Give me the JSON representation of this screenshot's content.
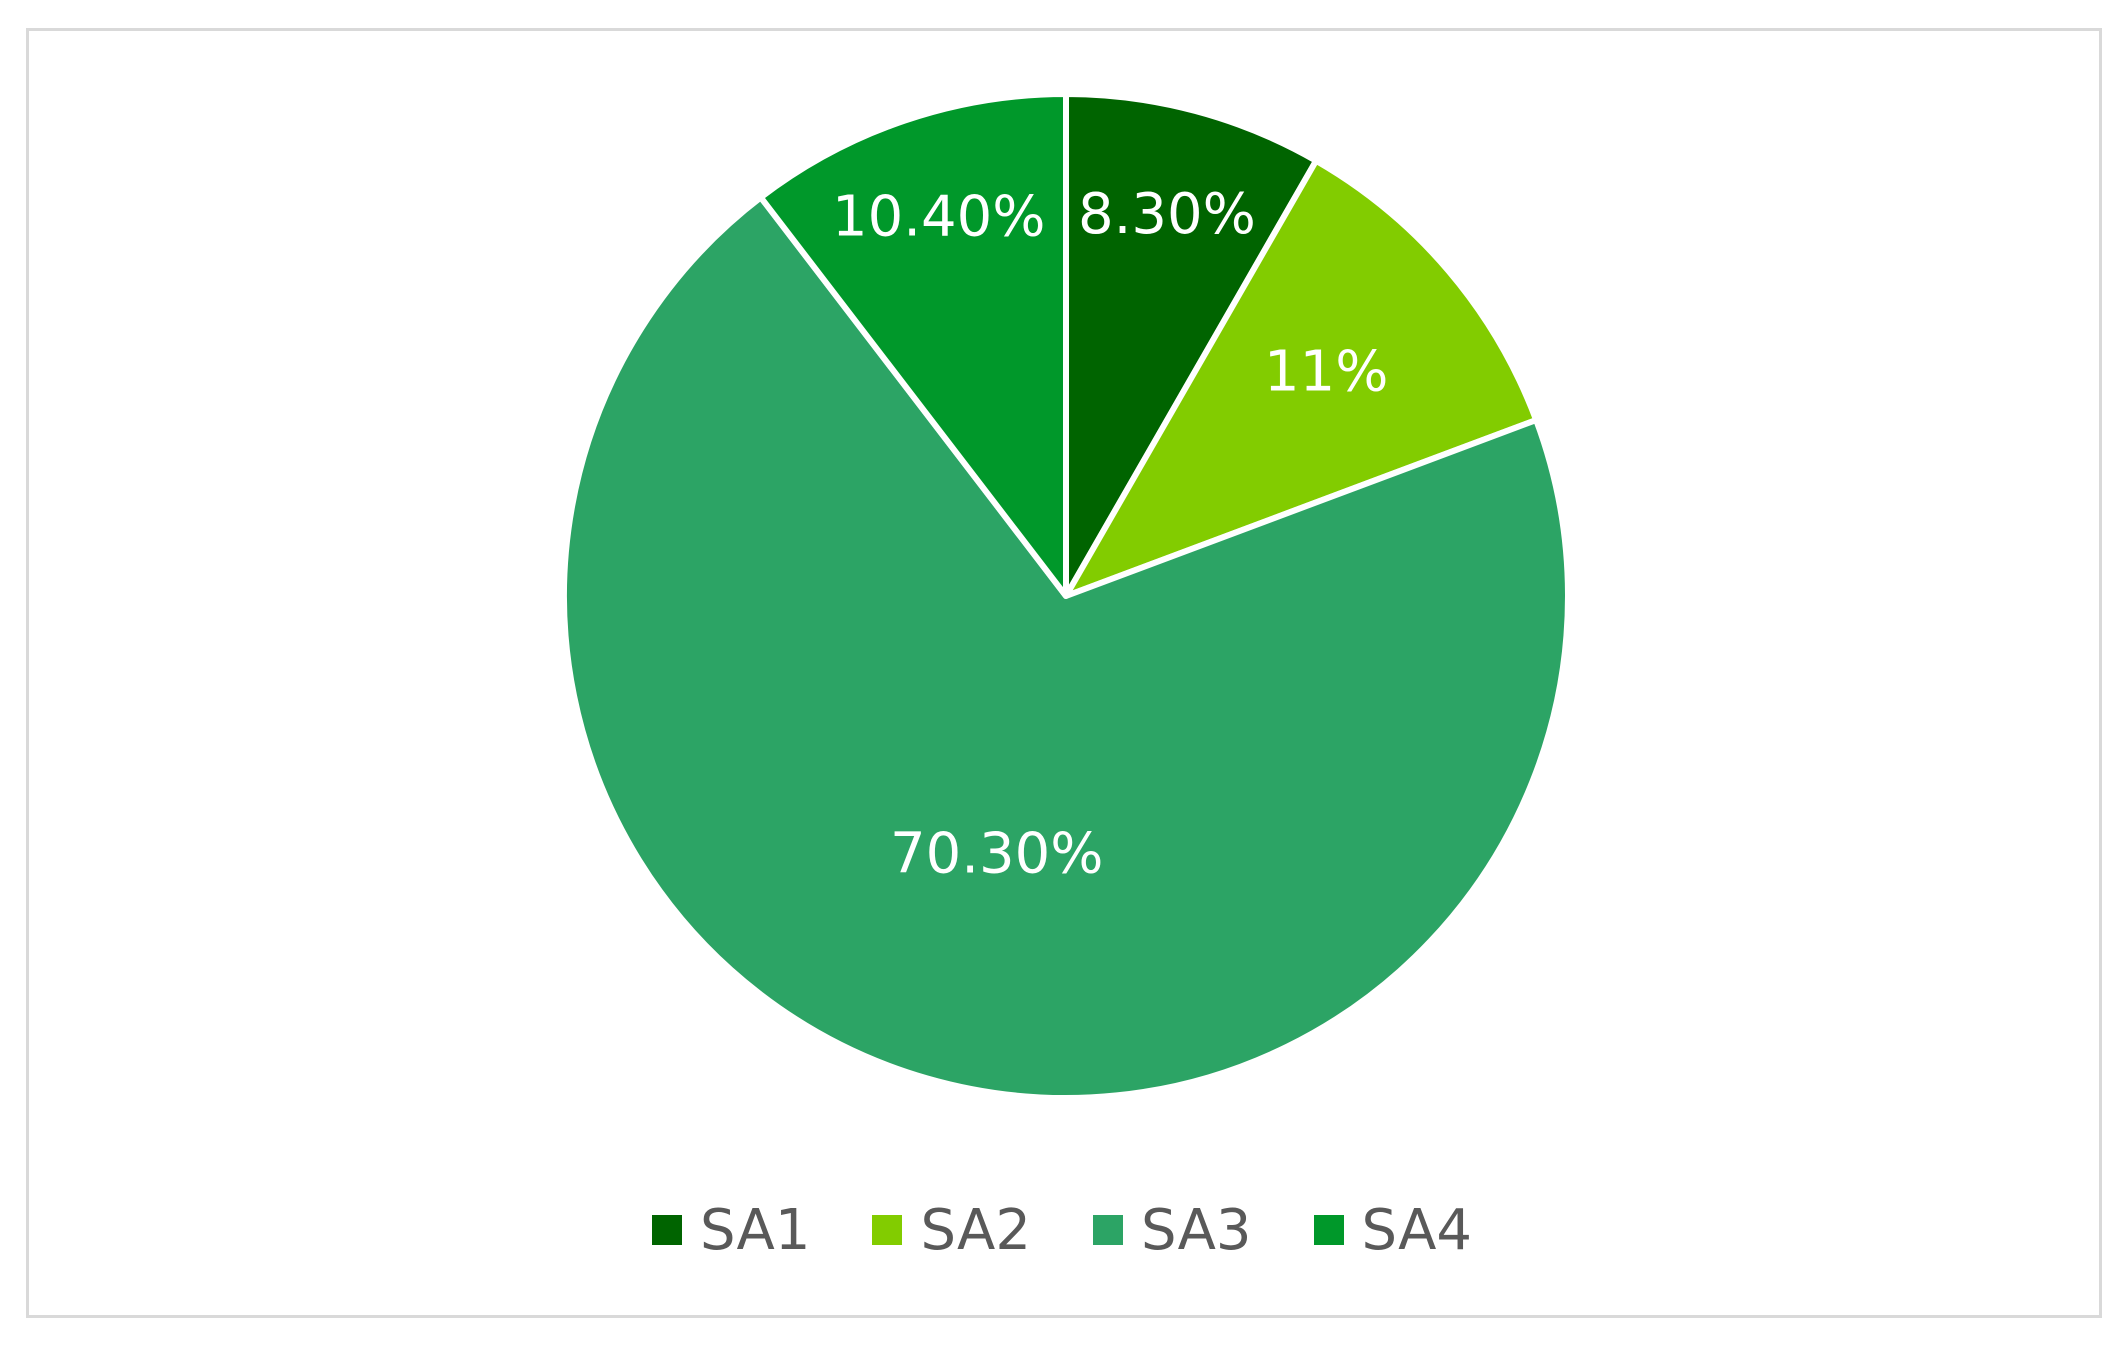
{
  "chart_data": {
    "type": "pie",
    "categories": [
      "SA1",
      "SA2",
      "SA3",
      "SA4"
    ],
    "values": [
      8.3,
      11,
      70.3,
      10.4
    ],
    "value_labels": [
      "8.30%",
      "11%",
      "70.30%",
      "10.40%"
    ],
    "colors": [
      "#006400",
      "#82cc00",
      "#2ca465",
      "#00982a"
    ],
    "legend_position": "bottom",
    "start_angle": "12 o'clock",
    "direction": "clockwise"
  }
}
